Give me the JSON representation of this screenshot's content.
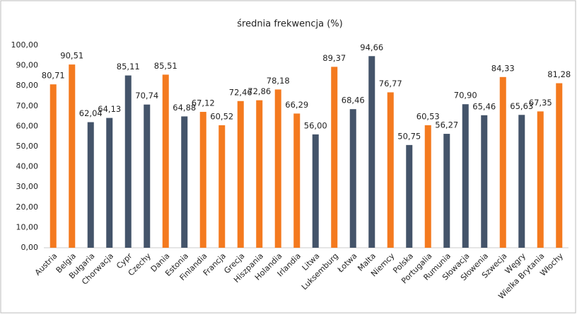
{
  "chart_data": {
    "type": "bar",
    "title": "średnia frekwencja (%)",
    "categories": [
      "Austria",
      "Belgia",
      "Bułgaria",
      "Chorwacja",
      "Cypr",
      "Czechy",
      "Dania",
      "Estonia",
      "Finlandia",
      "Francja",
      "Grecja",
      "Hiszpania",
      "Holandia",
      "Irlandia",
      "Litwa",
      "Luksemburg",
      "Łotwa",
      "Malta",
      "Niemcy",
      "Polska",
      "Portugalia",
      "Rumunia",
      "Słowacja",
      "Słowenia",
      "Szwecja",
      "Węgry",
      "Wielka Brytania",
      "Włochy"
    ],
    "values": [
      80.71,
      90.51,
      62.04,
      64.13,
      85.11,
      70.74,
      85.51,
      64.88,
      67.12,
      60.52,
      72.46,
      72.86,
      78.18,
      66.29,
      56.0,
      89.37,
      68.46,
      94.66,
      76.77,
      50.75,
      60.53,
      56.27,
      70.9,
      65.46,
      84.33,
      65.63,
      67.35,
      81.28
    ],
    "value_labels": [
      "80,71",
      "90,51",
      "62,04",
      "64,13",
      "85,11",
      "70,74",
      "85,51",
      "64,88",
      "67,12",
      "60,52",
      "72,46",
      "72,86",
      "78,18",
      "66,29",
      "56,00",
      "89,37",
      "68,46",
      "94,66",
      "76,77",
      "50,75",
      "60,53",
      "56,27",
      "70,90",
      "65,46",
      "84,33",
      "65,63",
      "67,35",
      "81,28"
    ],
    "colors": [
      "#f47a1f",
      "#f47a1f",
      "#44546a",
      "#44546a",
      "#44546a",
      "#44546a",
      "#f47a1f",
      "#44546a",
      "#f47a1f",
      "#f47a1f",
      "#f47a1f",
      "#f47a1f",
      "#f47a1f",
      "#f47a1f",
      "#44546a",
      "#f47a1f",
      "#44546a",
      "#44546a",
      "#f47a1f",
      "#44546a",
      "#f47a1f",
      "#44546a",
      "#44546a",
      "#44546a",
      "#f47a1f",
      "#44546a",
      "#f47a1f",
      "#f47a1f"
    ],
    "ylim": [
      0,
      100
    ],
    "yticks": [
      {
        "value": 0,
        "label": "0,00"
      },
      {
        "value": 10,
        "label": "10,00"
      },
      {
        "value": 20,
        "label": "20,00"
      },
      {
        "value": 30,
        "label": "30,00"
      },
      {
        "value": 40,
        "label": "40,00"
      },
      {
        "value": 50,
        "label": "50,00"
      },
      {
        "value": 60,
        "label": "60,00"
      },
      {
        "value": 70,
        "label": "70,00"
      },
      {
        "value": 80,
        "label": "80,00"
      },
      {
        "value": 90,
        "label": "90,00"
      },
      {
        "value": 100,
        "label": "100,00"
      }
    ],
    "grid": false
  }
}
